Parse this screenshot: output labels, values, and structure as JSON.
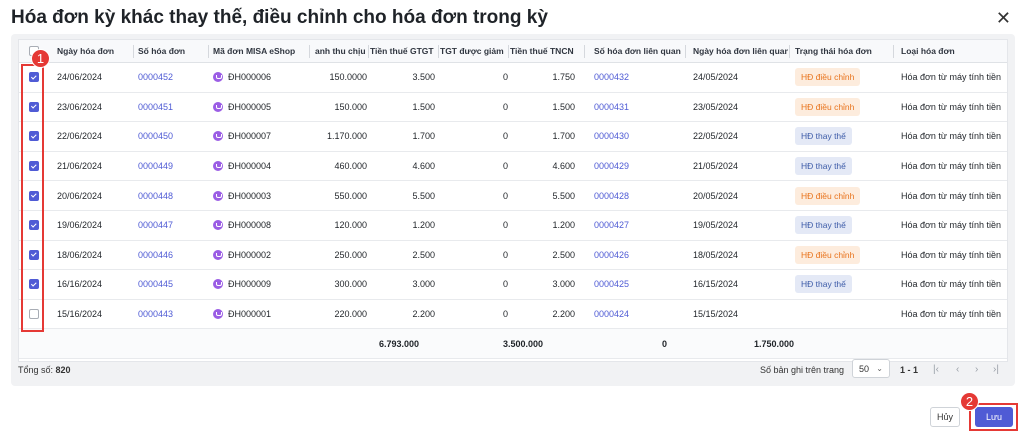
{
  "dialog": {
    "title": "Hóa đơn kỳ khác thay thế, điều chỉnh cho hóa đơn trong kỳ",
    "close_icon": "close-icon"
  },
  "columns": {
    "date": "Ngày hóa đơn",
    "number": "Số hóa đơn",
    "misa": "Mã đơn MISA eShop",
    "revenue": "anh thu chịu thuế",
    "vat": "Tiền thuế GTGT",
    "reduced": "TGT được giảm",
    "tncn": "Tiền thuế TNCN",
    "related": "Số hóa đơn liên quan",
    "related_date": "Ngày hóa đơn liên quan",
    "status": "Trạng thái hóa đơn",
    "type": "Loại hóa đơn"
  },
  "rows": [
    {
      "checked": true,
      "date": "24/06/2024",
      "number": "0000452",
      "misa": "ĐH000006",
      "revenue": "150.0000",
      "vat": "3.500",
      "reduced": "0",
      "tncn": "1.750",
      "related": "0000432",
      "related_date": "24/05/2024",
      "status": "HĐ điều chỉnh",
      "status_kind": "adj",
      "type": "Hóa đơn từ máy tính tiền"
    },
    {
      "checked": true,
      "date": "23/06/2024",
      "number": "0000451",
      "misa": "ĐH000005",
      "revenue": "150.000",
      "vat": "1.500",
      "reduced": "0",
      "tncn": "1.500",
      "related": "0000431",
      "related_date": "23/05/2024",
      "status": "HĐ điều chỉnh",
      "status_kind": "adj",
      "type": "Hóa đơn từ máy tính tiền"
    },
    {
      "checked": true,
      "date": "22/06/2024",
      "number": "0000450",
      "misa": "ĐH000007",
      "revenue": "1.170.000",
      "vat": "1.700",
      "reduced": "0",
      "tncn": "1.700",
      "related": "0000430",
      "related_date": "22/05/2024",
      "status": "HĐ thay thế",
      "status_kind": "rep",
      "type": "Hóa đơn từ máy tính tiền"
    },
    {
      "checked": true,
      "date": "21/06/2024",
      "number": "0000449",
      "misa": "ĐH000004",
      "revenue": "460.000",
      "vat": "4.600",
      "reduced": "0",
      "tncn": "4.600",
      "related": "0000429",
      "related_date": "21/05/2024",
      "status": "HĐ thay thế",
      "status_kind": "rep",
      "type": "Hóa đơn từ máy tính tiền"
    },
    {
      "checked": true,
      "date": "20/06/2024",
      "number": "0000448",
      "misa": "ĐH000003",
      "revenue": "550.000",
      "vat": "5.500",
      "reduced": "0",
      "tncn": "5.500",
      "related": "0000428",
      "related_date": "20/05/2024",
      "status": "HĐ điều chỉnh",
      "status_kind": "adj",
      "type": "Hóa đơn từ máy tính tiền"
    },
    {
      "checked": true,
      "date": "19/06/2024",
      "number": "0000447",
      "misa": "ĐH000008",
      "revenue": "120.000",
      "vat": "1.200",
      "reduced": "0",
      "tncn": "1.200",
      "related": "0000427",
      "related_date": "19/05/2024",
      "status": "HĐ thay thế",
      "status_kind": "rep",
      "type": "Hóa đơn từ máy tính tiền"
    },
    {
      "checked": true,
      "date": "18/06/2024",
      "number": "0000446",
      "misa": "ĐH000002",
      "revenue": "250.000",
      "vat": "2.500",
      "reduced": "0",
      "tncn": "2.500",
      "related": "0000426",
      "related_date": "18/05/2024",
      "status": "HĐ điều chỉnh",
      "status_kind": "adj",
      "type": "Hóa đơn từ máy tính tiền"
    },
    {
      "checked": true,
      "date": "16/16/2024",
      "number": "0000445",
      "misa": "ĐH000009",
      "revenue": "300.000",
      "vat": "3.000",
      "reduced": "0",
      "tncn": "3.000",
      "related": "0000425",
      "related_date": "16/15/2024",
      "status": "HĐ thay thế",
      "status_kind": "rep",
      "type": "Hóa đơn từ máy tính tiền"
    },
    {
      "checked": false,
      "date": "15/16/2024",
      "number": "0000443",
      "misa": "ĐH000001",
      "revenue": "220.000",
      "vat": "2.200",
      "reduced": "0",
      "tncn": "2.200",
      "related": "0000424",
      "related_date": "15/15/2024",
      "status": "",
      "status_kind": "",
      "type": "Hóa đơn từ máy tính tiền"
    }
  ],
  "totals": {
    "revenue": "6.793.000",
    "vat": "3.500.000",
    "reduced": "0",
    "tncn": "1.750.000"
  },
  "footer": {
    "total_label": "Tổng số:",
    "total_value": "820",
    "page_size_label": "Số bản ghi trên trang",
    "page_size": "50",
    "range": "1 - 1"
  },
  "annotations": {
    "one": "1",
    "two": "2"
  },
  "buttons": {
    "cancel": "Hủy",
    "save": "Lưu"
  },
  "colors": {
    "accent": "#4f5bd5",
    "annotation": "#e53935"
  }
}
